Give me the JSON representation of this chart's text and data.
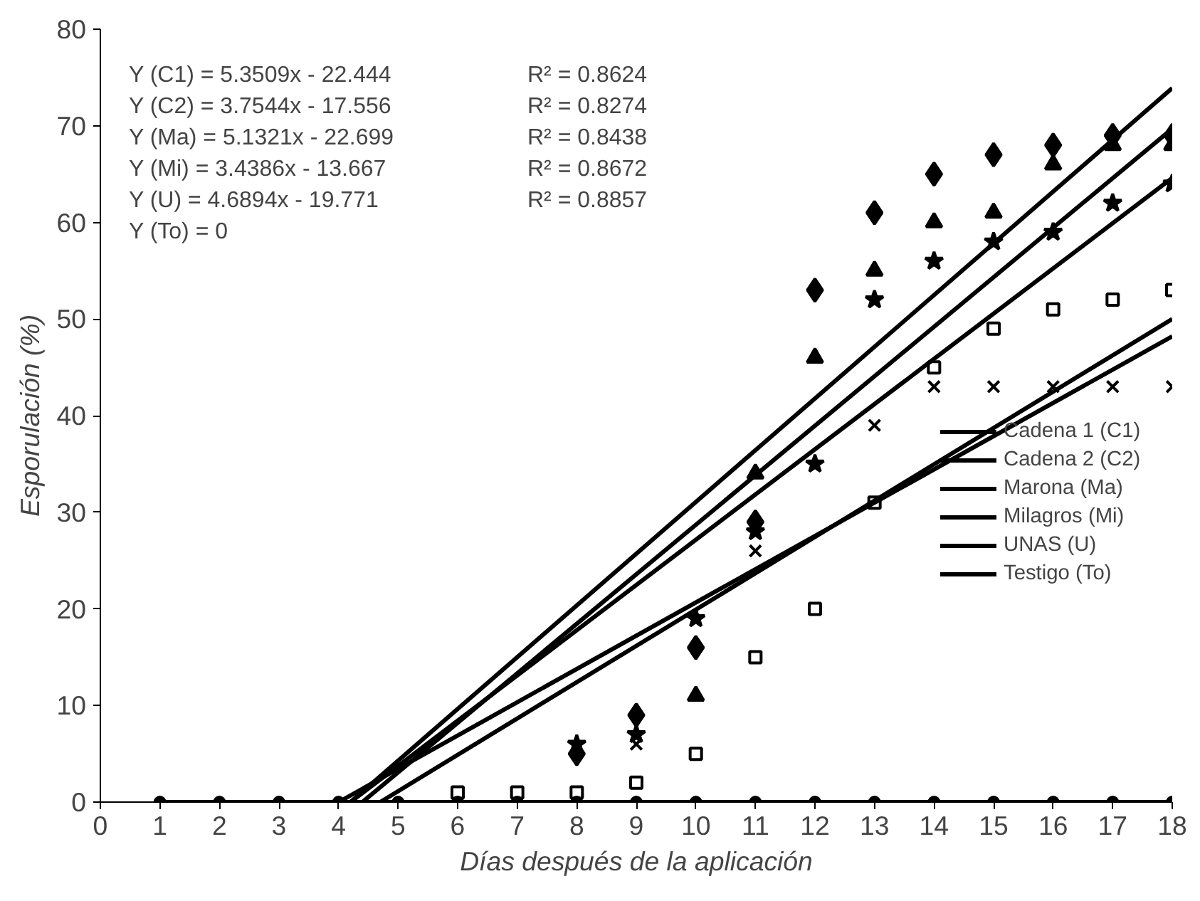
{
  "chart_data": {
    "type": "scatter",
    "xlabel": "Días después de la aplicación",
    "ylabel": "Esporulación (%)",
    "xlim": [
      0,
      18
    ],
    "ylim": [
      0,
      80
    ],
    "xticks": [
      0,
      1,
      2,
      3,
      4,
      5,
      6,
      7,
      8,
      9,
      10,
      11,
      12,
      13,
      14,
      15,
      16,
      17,
      18
    ],
    "yticks": [
      0,
      10,
      20,
      30,
      40,
      50,
      60,
      70,
      80
    ],
    "grid": false,
    "legend": "right",
    "line_style": "solid",
    "annotations": [
      "Y (C1) = 5.3509x - 22.444",
      "Y (C2) = 3.7544x - 17.556",
      "Y (Ma) = 5.1321x - 22.699",
      "Y (Mi)  = 3.4386x - 13.667",
      "Y (U)  = 4.6894x - 19.771",
      "Y (To)  = 0",
      "R² = 0.8624",
      "R² = 0.8274",
      "R² = 0.8438",
      "R² = 0.8672",
      "R² = 0.8857"
    ],
    "series": [
      {
        "marker": "diamond",
        "color": "#000000",
        "x": [
          8,
          9,
          10,
          11,
          12,
          13,
          14,
          15,
          16,
          17,
          18
        ],
        "values": [
          5,
          9,
          16,
          29,
          53,
          61,
          65,
          67,
          68,
          69,
          69
        ]
      },
      {
        "marker": "square",
        "color": "#000000",
        "x": [
          6,
          7,
          8,
          9,
          10,
          11,
          12,
          13,
          14,
          15,
          16,
          17,
          18
        ],
        "values": [
          1,
          1,
          1,
          2,
          5,
          15,
          20,
          31,
          45,
          49,
          51,
          52,
          53
        ]
      },
      {
        "marker": "triangle",
        "color": "#000000",
        "x": [
          10,
          11,
          12,
          13,
          14,
          15,
          16,
          17,
          18
        ],
        "values": [
          11,
          34,
          46,
          55,
          60,
          61,
          66,
          68,
          68
        ]
      },
      {
        "marker": "cross",
        "color": "#000000",
        "x": [
          9,
          10,
          11,
          12,
          13,
          14,
          15,
          16,
          17,
          18
        ],
        "values": [
          6,
          null,
          26,
          null,
          39,
          43,
          43,
          43,
          43,
          43
        ]
      },
      {
        "marker": "star",
        "color": "#000000",
        "x": [
          8,
          9,
          10,
          11,
          12,
          13,
          14,
          15,
          16,
          17,
          18
        ],
        "values": [
          6,
          7,
          19,
          28,
          35,
          52,
          56,
          58,
          59,
          62,
          64
        ]
      },
      {
        "marker": "circle",
        "color": "#000000",
        "x": [
          1,
          2,
          3,
          4,
          5,
          6,
          7,
          8,
          9,
          10,
          11,
          12,
          13,
          14,
          15,
          16,
          17,
          18
        ],
        "values": [
          0,
          0,
          0,
          0,
          0,
          0,
          0,
          0,
          0,
          0,
          0,
          0,
          0,
          0,
          0,
          0,
          0,
          0
        ]
      },
      {
        "type": "line",
        "name": "Cadena 1 (C1)",
        "color": "#000000",
        "x": [
          4.2,
          18
        ],
        "values": [
          0,
          73.9
        ]
      },
      {
        "type": "line",
        "name": "Cadena 2 (C2)",
        "color": "#000000",
        "x": [
          4.7,
          18
        ],
        "values": [
          0,
          50.0
        ]
      },
      {
        "type": "line",
        "name": "Marona (Ma)",
        "color": "#000000",
        "x": [
          4.4,
          18
        ],
        "values": [
          0,
          69.7
        ]
      },
      {
        "type": "line",
        "name": "Milagros (Mi)",
        "color": "#000000",
        "x": [
          4.0,
          18
        ],
        "values": [
          0,
          48.2
        ]
      },
      {
        "type": "line",
        "name": "UNAS (U)",
        "color": "#000000",
        "x": [
          4.2,
          18
        ],
        "values": [
          0,
          64.6
        ]
      },
      {
        "type": "line",
        "name": "Testigo (To)",
        "color": "#000000",
        "x": [
          1,
          18
        ],
        "values": [
          0,
          0
        ]
      }
    ]
  }
}
